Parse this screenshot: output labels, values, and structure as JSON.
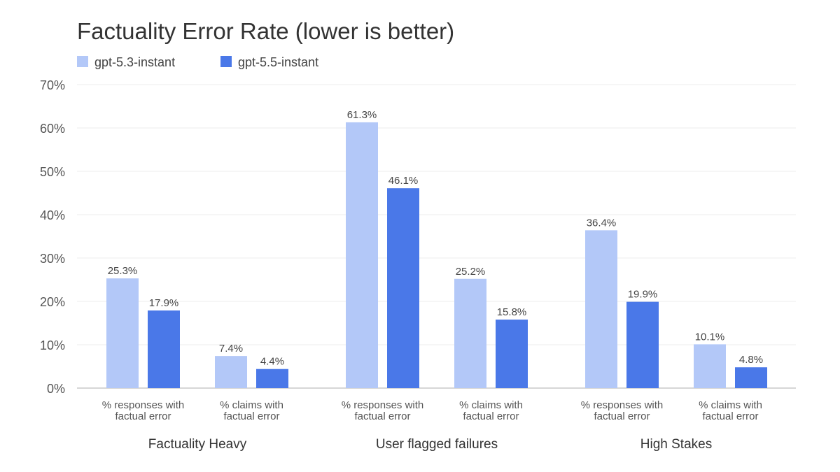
{
  "chart_data": {
    "type": "bar",
    "title": "Factuality Error Rate (lower is better)",
    "ylim": [
      0,
      70
    ],
    "y_ticks": [
      0,
      10,
      20,
      30,
      40,
      50,
      60,
      70
    ],
    "y_tick_format": "{v}%",
    "grid": true,
    "legend_position": "top-left",
    "groups": [
      {
        "label": "Factuality Heavy",
        "categories": [
          {
            "label_lines": [
              "% responses with",
              "factual error"
            ],
            "values": [
              25.3,
              17.9
            ]
          },
          {
            "label_lines": [
              "% claims with",
              "factual error"
            ],
            "values": [
              7.4,
              4.4
            ]
          }
        ]
      },
      {
        "label": "User flagged failures",
        "categories": [
          {
            "label_lines": [
              "% responses with",
              "factual error"
            ],
            "values": [
              61.3,
              46.1
            ]
          },
          {
            "label_lines": [
              "% claims with",
              "factual error"
            ],
            "values": [
              25.2,
              15.8
            ]
          }
        ]
      },
      {
        "label": "High Stakes",
        "categories": [
          {
            "label_lines": [
              "% responses with",
              "factual error"
            ],
            "values": [
              36.4,
              19.9
            ]
          },
          {
            "label_lines": [
              "% claims with",
              "factual error"
            ],
            "values": [
              10.1,
              4.8
            ]
          }
        ]
      }
    ],
    "series": [
      {
        "name": "gpt-5.3-instant",
        "color": "#b3c8f8"
      },
      {
        "name": "gpt-5.5-instant",
        "color": "#4a78e8"
      }
    ]
  }
}
